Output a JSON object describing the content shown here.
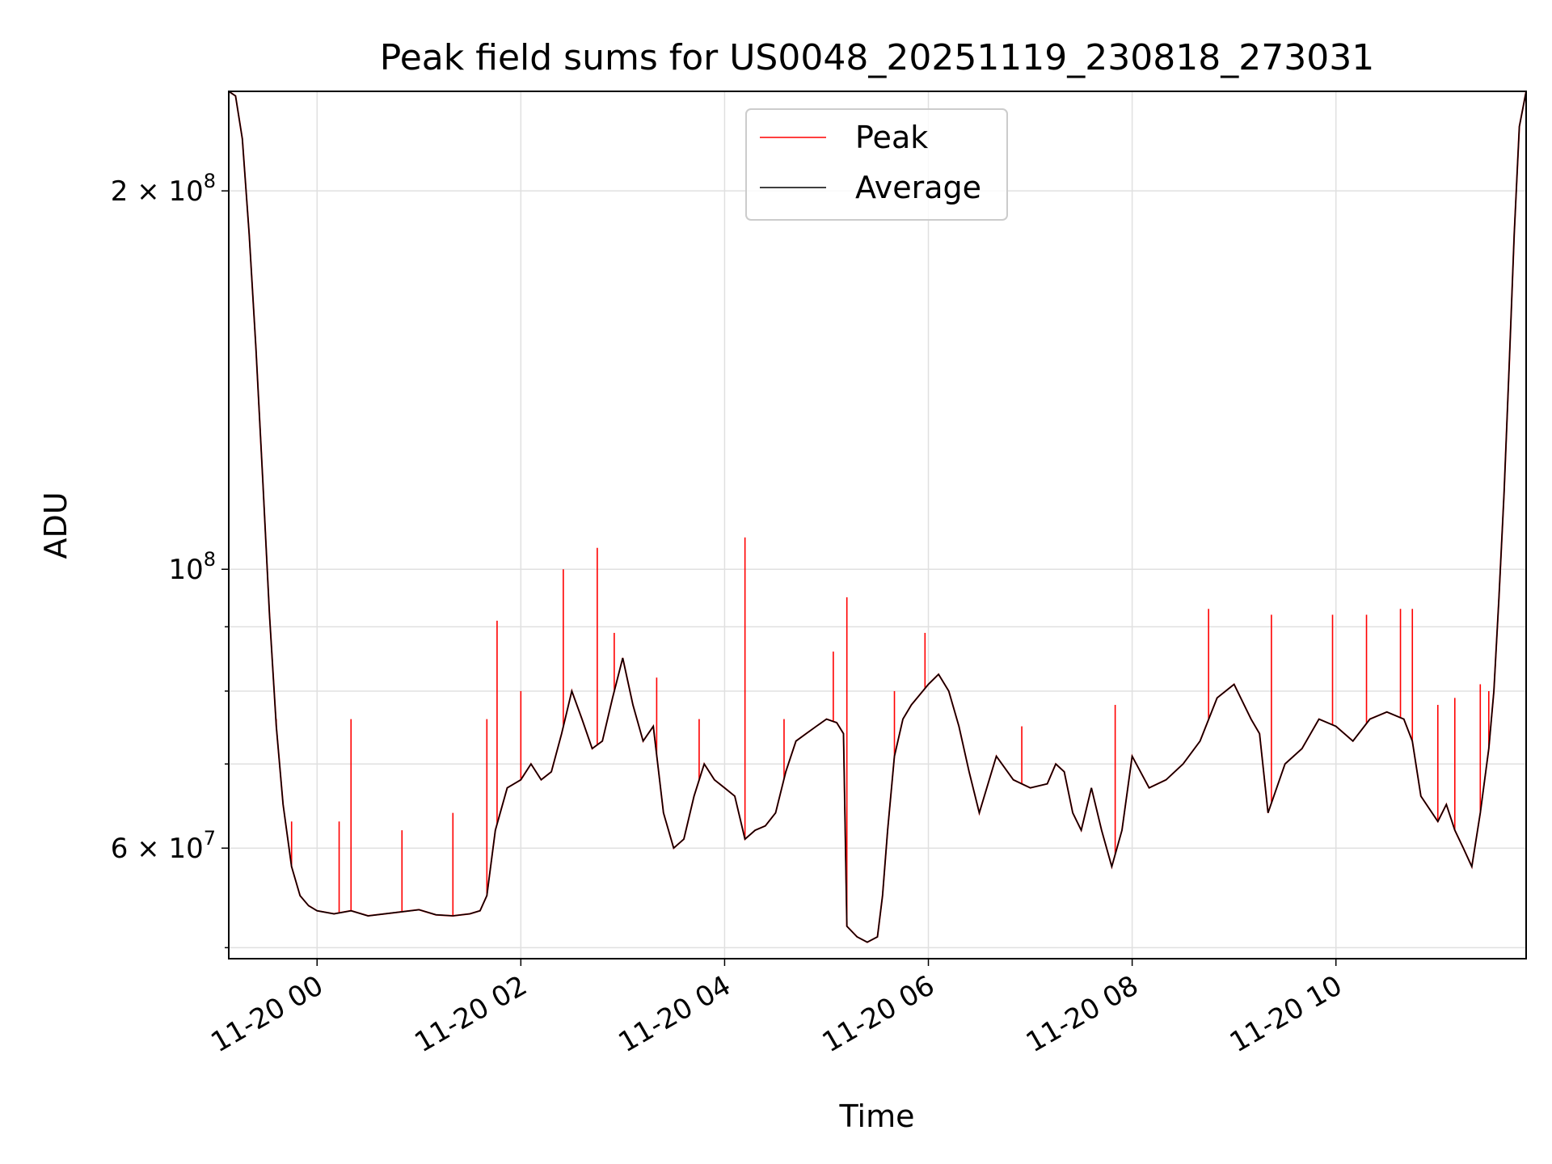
{
  "chart_data": {
    "type": "line",
    "title": "Peak field sums for US0048_20251119_230818_273031",
    "xlabel": "Time",
    "ylabel": "ADU",
    "yscale": "log",
    "ylim": [
      49000000,
      240000000
    ],
    "xlim": [
      "11-19 23:08",
      "11-20 11:52"
    ],
    "grid": true,
    "legend_position": "top-center",
    "x_ticks": [
      {
        "label": "11-20 00",
        "value": "11-20 00:00"
      },
      {
        "label": "11-20 02",
        "value": "11-20 02:00"
      },
      {
        "label": "11-20 04",
        "value": "11-20 04:00"
      },
      {
        "label": "11-20 06",
        "value": "11-20 06:00"
      },
      {
        "label": "11-20 08",
        "value": "11-20 08:00"
      },
      {
        "label": "11-20 10",
        "value": "11-20 10:00"
      }
    ],
    "y_ticks": [
      {
        "base": "2",
        "exp": "8",
        "times": true,
        "value": 200000000
      },
      {
        "base": "",
        "exp": "8",
        "times": false,
        "value": 100000000
      },
      {
        "base": "6",
        "exp": "7",
        "times": true,
        "value": 60000000
      }
    ],
    "y_minor_ticks": [
      50000000,
      70000000,
      80000000,
      90000000
    ],
    "series": [
      {
        "name": "Average",
        "color": "#000000",
        "x": [
          "11-19 23:08",
          "11-19 23:12",
          "11-19 23:16",
          "11-19 23:20",
          "11-19 23:24",
          "11-19 23:28",
          "11-19 23:32",
          "11-19 23:36",
          "11-19 23:40",
          "11-19 23:45",
          "11-19 23:50",
          "11-19 23:55",
          "11-20 00:00",
          "11-20 00:10",
          "11-20 00:20",
          "11-20 00:30",
          "11-20 00:45",
          "11-20 01:00",
          "11-20 01:10",
          "11-20 01:20",
          "11-20 01:30",
          "11-20 01:36",
          "11-20 01:40",
          "11-20 01:45",
          "11-20 01:52",
          "11-20 02:00",
          "11-20 02:06",
          "11-20 02:12",
          "11-20 02:18",
          "11-20 02:24",
          "11-20 02:30",
          "11-20 02:36",
          "11-20 02:42",
          "11-20 02:48",
          "11-20 02:54",
          "11-20 03:00",
          "11-20 03:06",
          "11-20 03:12",
          "11-20 03:18",
          "11-20 03:24",
          "11-20 03:30",
          "11-20 03:36",
          "11-20 03:42",
          "11-20 03:48",
          "11-20 03:54",
          "11-20 04:00",
          "11-20 04:06",
          "11-20 04:12",
          "11-20 04:18",
          "11-20 04:24",
          "11-20 04:30",
          "11-20 04:36",
          "11-20 04:42",
          "11-20 04:48",
          "11-20 04:54",
          "11-20 05:00",
          "11-20 05:06",
          "11-20 05:10",
          "11-20 05:12",
          "11-20 05:18",
          "11-20 05:24",
          "11-20 05:30",
          "11-20 05:33",
          "11-20 05:36",
          "11-20 05:40",
          "11-20 05:45",
          "11-20 05:50",
          "11-20 06:00",
          "11-20 06:06",
          "11-20 06:12",
          "11-20 06:18",
          "11-20 06:24",
          "11-20 06:30",
          "11-20 06:40",
          "11-20 06:50",
          "11-20 07:00",
          "11-20 07:10",
          "11-20 07:15",
          "11-20 07:20",
          "11-20 07:25",
          "11-20 07:30",
          "11-20 07:36",
          "11-20 07:42",
          "11-20 07:48",
          "11-20 07:54",
          "11-20 08:00",
          "11-20 08:10",
          "11-20 08:20",
          "11-20 08:30",
          "11-20 08:40",
          "11-20 08:50",
          "11-20 09:00",
          "11-20 09:10",
          "11-20 09:15",
          "11-20 09:20",
          "11-20 09:30",
          "11-20 09:40",
          "11-20 09:50",
          "11-20 10:00",
          "11-20 10:10",
          "11-20 10:20",
          "11-20 10:30",
          "11-20 10:40",
          "11-20 10:45",
          "11-20 10:50",
          "11-20 11:00",
          "11-20 11:05",
          "11-20 11:10",
          "11-20 11:15",
          "11-20 11:20",
          "11-20 11:25",
          "11-20 11:30",
          "11-20 11:33",
          "11-20 11:36",
          "11-20 11:39",
          "11-20 11:42",
          "11-20 11:45",
          "11-20 11:48",
          "11-20 11:52"
        ],
        "values": [
          240000000,
          238000000,
          220000000,
          185000000,
          150000000,
          118000000,
          92000000,
          75000000,
          65000000,
          58000000,
          55000000,
          54000000,
          53500000,
          53200000,
          53500000,
          53000000,
          53300000,
          53600000,
          53100000,
          53000000,
          53200000,
          53500000,
          55000000,
          62000000,
          67000000,
          68000000,
          70000000,
          68000000,
          69000000,
          74000000,
          80000000,
          76000000,
          72000000,
          73000000,
          79000000,
          85000000,
          78000000,
          73000000,
          75000000,
          64000000,
          60000000,
          61000000,
          66000000,
          70000000,
          68000000,
          67000000,
          66000000,
          61000000,
          62000000,
          62500000,
          64000000,
          69000000,
          73000000,
          74000000,
          75000000,
          76000000,
          75500000,
          74000000,
          52000000,
          51000000,
          50500000,
          51000000,
          55000000,
          62000000,
          71000000,
          76000000,
          78000000,
          81000000,
          82500000,
          80000000,
          75000000,
          69000000,
          64000000,
          71000000,
          68000000,
          67000000,
          67500000,
          70000000,
          69000000,
          64000000,
          62000000,
          67000000,
          62000000,
          58000000,
          62000000,
          71000000,
          67000000,
          68000000,
          70000000,
          73000000,
          79000000,
          81000000,
          76000000,
          74000000,
          64000000,
          70000000,
          72000000,
          76000000,
          75000000,
          73000000,
          76000000,
          77000000,
          76000000,
          73000000,
          66000000,
          63000000,
          65000000,
          62000000,
          60000000,
          58000000,
          64000000,
          72000000,
          80000000,
          95000000,
          115000000,
          145000000,
          185000000,
          225000000,
          240000000
        ]
      },
      {
        "name": "Peak",
        "color": "#ff0000",
        "x": [
          "11-19 23:36",
          "11-19 23:40",
          "11-19 23:45",
          "11-20 00:13",
          "11-20 00:20",
          "11-20 00:50",
          "11-20 01:20",
          "11-20 01:40",
          "11-20 01:46",
          "11-20 02:00",
          "11-20 02:25",
          "11-20 02:45",
          "11-20 02:55",
          "11-20 03:20",
          "11-20 03:45",
          "11-20 04:12",
          "11-20 04:35",
          "11-20 05:04",
          "11-20 05:12",
          "11-20 05:40",
          "11-20 05:58",
          "11-20 06:55",
          "11-20 07:50",
          "11-20 08:45",
          "11-20 09:22",
          "11-20 09:58",
          "11-20 10:18",
          "11-20 10:38",
          "11-20 10:45",
          "11-20 11:00",
          "11-20 11:10",
          "11-20 11:25",
          "11-20 11:30"
        ],
        "values": [
          76000000,
          65000000,
          63000000,
          63000000,
          76000000,
          62000000,
          64000000,
          76000000,
          91000000,
          80000000,
          100000000,
          104000000,
          89000000,
          82000000,
          76000000,
          106000000,
          76000000,
          86000000,
          95000000,
          80000000,
          89000000,
          75000000,
          78000000,
          93000000,
          92000000,
          92000000,
          92000000,
          93000000,
          93000000,
          78000000,
          79000000,
          81000000,
          80000000
        ]
      }
    ]
  }
}
